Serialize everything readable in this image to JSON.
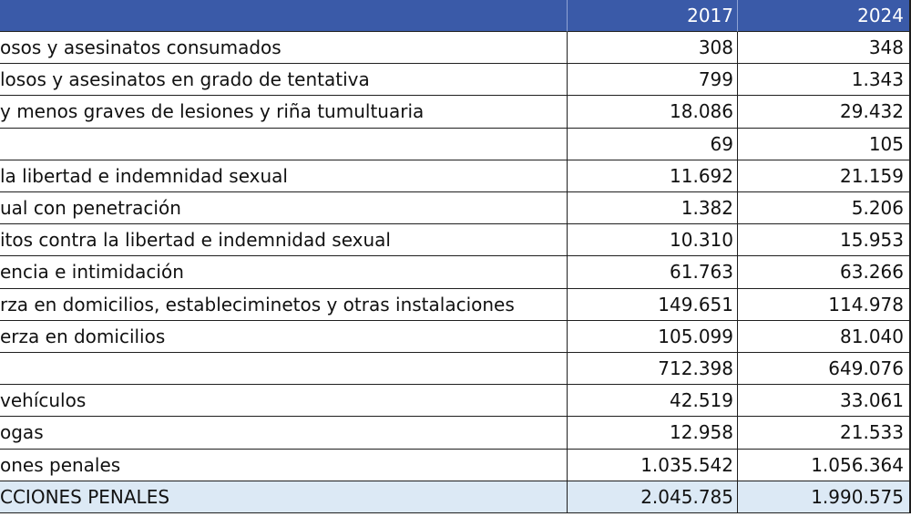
{
  "chart_data": {
    "type": "table",
    "columns": [
      "",
      "2017",
      "2024"
    ],
    "rows": [
      {
        "label": "osos y asesinatos consumados",
        "v2017": "308",
        "v2024": "348"
      },
      {
        "label": "losos y asesinatos en grado de tentativa",
        "v2017": "799",
        "v2024": "1.343"
      },
      {
        "label": "y menos graves de lesiones y riña tumultuaria",
        "v2017": "18.086",
        "v2024": "29.432"
      },
      {
        "label": "",
        "v2017": "69",
        "v2024": "105"
      },
      {
        "label": "la libertad e indemnidad sexual",
        "v2017": "11.692",
        "v2024": "21.159"
      },
      {
        "label": "ual con penetración",
        "v2017": "1.382",
        "v2024": "5.206"
      },
      {
        "label": "itos contra la libertad e indemnidad sexual",
        "v2017": "10.310",
        "v2024": "15.953"
      },
      {
        "label": "encia e intimidación",
        "v2017": "61.763",
        "v2024": "63.266"
      },
      {
        "label": "rza en domicilios, estableciminetos y otras instalaciones",
        "v2017": "149.651",
        "v2024": "114.978"
      },
      {
        "label": "erza en domicilios",
        "v2017": "105.099",
        "v2024": "81.040"
      },
      {
        "label": "",
        "v2017": "712.398",
        "v2024": "649.076"
      },
      {
        "label": "vehículos",
        "v2017": "42.519",
        "v2024": "33.061"
      },
      {
        "label": "ogas",
        "v2017": "12.958",
        "v2024": "21.533"
      },
      {
        "label": "ones penales",
        "v2017": "1.035.542",
        "v2024": "1.056.364"
      },
      {
        "label": "CCIONES PENALES",
        "v2017": "2.045.785",
        "v2024": "1.990.575"
      }
    ],
    "colors": {
      "header_bg": "#3a5aa8",
      "header_text": "#ffffff",
      "total_bg": "#dce9f5"
    }
  }
}
